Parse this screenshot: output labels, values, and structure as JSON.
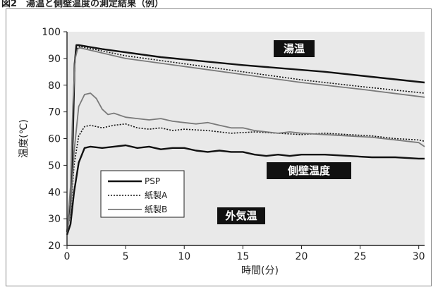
{
  "figure": {
    "caption": "図2　湯温と側壁温度の測定結果（例）",
    "colors": {
      "frame": "#8a8a8a",
      "plot_bg": "#e9e9e9",
      "annotation_bg": "#111111"
    }
  },
  "chart_data": {
    "type": "line",
    "title": "",
    "xlabel": "時間(分)",
    "ylabel": "温度(℃)",
    "xlim": [
      0,
      30.5
    ],
    "ylim": [
      20,
      100
    ],
    "x_ticks": [
      0,
      5,
      10,
      15,
      20,
      25,
      30
    ],
    "y_ticks": [
      20,
      30,
      40,
      50,
      60,
      70,
      80,
      90,
      100
    ],
    "grid": false,
    "legend": {
      "placement": "bottom-left",
      "entries": [
        "PSP",
        "紙製A",
        "紙製B"
      ]
    },
    "annotations": [
      "湯温",
      "側壁温度",
      "外気温"
    ],
    "series": [
      {
        "name": "PSP",
        "group": "湯温",
        "style": {
          "color": "#111111",
          "width": 2.4,
          "dash": ""
        },
        "points": [
          [
            0,
            25
          ],
          [
            0.3,
            35
          ],
          [
            0.5,
            60
          ],
          [
            0.65,
            88
          ],
          [
            0.8,
            95
          ],
          [
            1.0,
            95
          ],
          [
            3,
            93.5
          ],
          [
            8,
            90.5
          ],
          [
            15,
            87.5
          ],
          [
            22,
            85
          ],
          [
            30.5,
            81
          ]
        ]
      },
      {
        "name": "紙製A",
        "group": "湯温",
        "style": {
          "color": "#111111",
          "width": 1.6,
          "dash": "2,2"
        },
        "points": [
          [
            0,
            25
          ],
          [
            0.3,
            40
          ],
          [
            0.5,
            70
          ],
          [
            0.7,
            90
          ],
          [
            0.9,
            94
          ],
          [
            1.1,
            94.5
          ],
          [
            5,
            91
          ],
          [
            10,
            88
          ],
          [
            15,
            85
          ],
          [
            20,
            82
          ],
          [
            25,
            79.5
          ],
          [
            30.5,
            77
          ]
        ]
      },
      {
        "name": "紙製B",
        "group": "湯温",
        "style": {
          "color": "#7a7a7a",
          "width": 1.8,
          "dash": ""
        },
        "points": [
          [
            0,
            25
          ],
          [
            0.3,
            42
          ],
          [
            0.5,
            72
          ],
          [
            0.7,
            90
          ],
          [
            0.9,
            93.5
          ],
          [
            1.1,
            94
          ],
          [
            5,
            90
          ],
          [
            10,
            87
          ],
          [
            15,
            84
          ],
          [
            20,
            81
          ],
          [
            25,
            78.5
          ],
          [
            30.5,
            75.5
          ]
        ]
      },
      {
        "name": "PSP",
        "group": "側壁温度",
        "style": {
          "color": "#111111",
          "width": 2.4,
          "dash": ""
        },
        "points": [
          [
            0,
            24
          ],
          [
            0.3,
            28
          ],
          [
            0.6,
            40
          ],
          [
            1.0,
            51
          ],
          [
            1.5,
            56.5
          ],
          [
            2,
            57
          ],
          [
            3,
            56.5
          ],
          [
            4,
            57
          ],
          [
            5,
            57.5
          ],
          [
            6,
            56.5
          ],
          [
            7,
            57
          ],
          [
            8,
            56
          ],
          [
            9,
            56.5
          ],
          [
            10,
            56.5
          ],
          [
            11,
            55.5
          ],
          [
            12,
            55
          ],
          [
            13,
            55.5
          ],
          [
            14,
            55
          ],
          [
            15,
            55
          ],
          [
            16,
            54
          ],
          [
            17,
            53.5
          ],
          [
            18,
            54
          ],
          [
            19,
            53.5
          ],
          [
            20,
            54
          ],
          [
            22,
            54
          ],
          [
            24,
            53.5
          ],
          [
            26,
            53
          ],
          [
            28,
            53
          ],
          [
            30,
            52.5
          ],
          [
            30.5,
            52.5
          ]
        ]
      },
      {
        "name": "紙製A",
        "group": "側壁温度",
        "style": {
          "color": "#111111",
          "width": 1.6,
          "dash": "2,2"
        },
        "points": [
          [
            0,
            25
          ],
          [
            0.3,
            32
          ],
          [
            0.6,
            50
          ],
          [
            1.0,
            61
          ],
          [
            1.5,
            64.5
          ],
          [
            2,
            65
          ],
          [
            3,
            64
          ],
          [
            4,
            65
          ],
          [
            5,
            65.5
          ],
          [
            6,
            64
          ],
          [
            7,
            63.5
          ],
          [
            8,
            64
          ],
          [
            9,
            63
          ],
          [
            10,
            63.5
          ],
          [
            12,
            63
          ],
          [
            14,
            62
          ],
          [
            16,
            62.5
          ],
          [
            18,
            62
          ],
          [
            20,
            61.5
          ],
          [
            22,
            62
          ],
          [
            24,
            61.5
          ],
          [
            26,
            61
          ],
          [
            28,
            60
          ],
          [
            30,
            59.5
          ],
          [
            30.5,
            59
          ]
        ]
      },
      {
        "name": "紙製B",
        "group": "側壁温度",
        "style": {
          "color": "#7a7a7a",
          "width": 1.8,
          "dash": ""
        },
        "points": [
          [
            0,
            25
          ],
          [
            0.3,
            33
          ],
          [
            0.6,
            55
          ],
          [
            1.0,
            72
          ],
          [
            1.5,
            76.5
          ],
          [
            2,
            77
          ],
          [
            2.5,
            75
          ],
          [
            3,
            71
          ],
          [
            3.5,
            69
          ],
          [
            4,
            69.5
          ],
          [
            5,
            68
          ],
          [
            6,
            67.5
          ],
          [
            7,
            67
          ],
          [
            8,
            67.5
          ],
          [
            9,
            66.5
          ],
          [
            10,
            66
          ],
          [
            11,
            65.5
          ],
          [
            12,
            66
          ],
          [
            13,
            65
          ],
          [
            14,
            64
          ],
          [
            15,
            64
          ],
          [
            16,
            63
          ],
          [
            17,
            62.5
          ],
          [
            18,
            62
          ],
          [
            19,
            62.5
          ],
          [
            20,
            62
          ],
          [
            22,
            61.5
          ],
          [
            24,
            61
          ],
          [
            26,
            60.5
          ],
          [
            28,
            59.5
          ],
          [
            30,
            58.5
          ],
          [
            30.5,
            57
          ]
        ]
      }
    ]
  }
}
